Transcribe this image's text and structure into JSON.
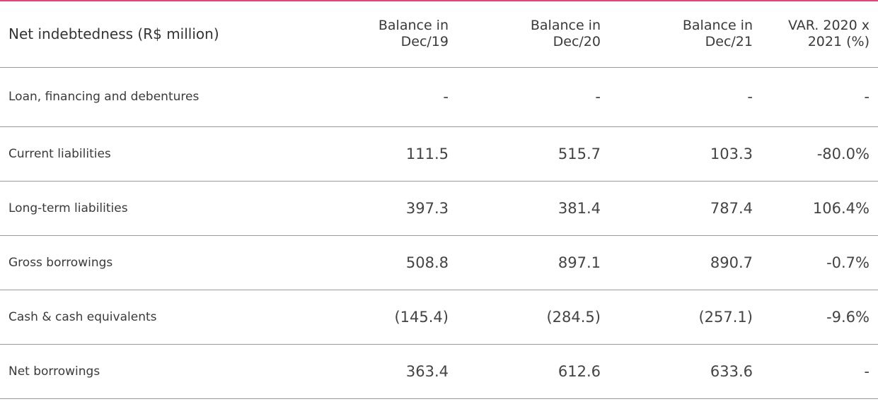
{
  "table": {
    "header": {
      "label": "Net indebtedness (R$ million)",
      "columns": [
        "Balance in Dec/19",
        "Balance in Dec/20",
        "Balance in Dec/21",
        "VAR. 2020 x 2021 (%)"
      ]
    },
    "rows": [
      {
        "label": "Loan, financing and debentures",
        "values": [
          "-",
          "-",
          "-",
          "-"
        ]
      },
      {
        "label": "Current liabilities",
        "values": [
          "111.5",
          "515.7",
          "103.3",
          "-80.0%"
        ]
      },
      {
        "label": "Long-term liabilities",
        "values": [
          "397.3",
          "381.4",
          "787.4",
          "106.4%"
        ]
      },
      {
        "label": "Gross borrowings",
        "values": [
          "508.8",
          "897.1",
          "890.7",
          "-0.7%"
        ]
      },
      {
        "label": "Cash & cash equivalents",
        "values": [
          "(145.4)",
          "(284.5)",
          "(257.1)",
          "-9.6%"
        ]
      },
      {
        "label": "Net borrowings",
        "values": [
          "363.4",
          "612.6",
          "633.6",
          "-"
        ]
      }
    ]
  },
  "colors": {
    "accent_rule": "#e0457b",
    "row_divider": "#9a9a9a",
    "text": "#3a3a3a"
  }
}
